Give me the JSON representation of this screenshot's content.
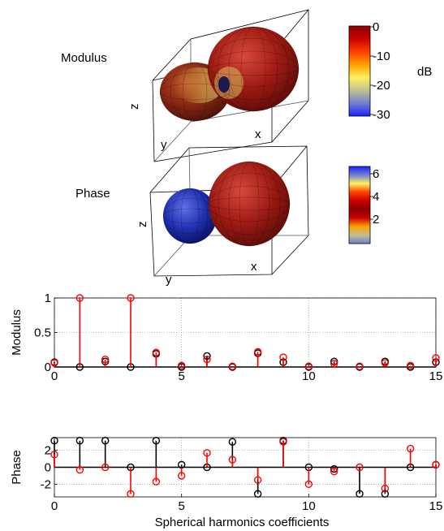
{
  "panels": {
    "modulus_3d": {
      "label": "Modulus",
      "axis_labels": {
        "z": "z",
        "y": "y",
        "x": "x"
      },
      "colorbar": {
        "ticks": [
          "0",
          "-10",
          "-20",
          "-30"
        ],
        "unit": "dB",
        "colors": [
          "#8b0000",
          "#cc0000",
          "#ff4000",
          "#ffa000",
          "#fff060",
          "#c0c090",
          "#7080d0",
          "#2020ff"
        ]
      }
    },
    "phase_3d": {
      "label": "Phase",
      "axis_labels": {
        "z": "z",
        "y": "y",
        "x": "x"
      },
      "colorbar": {
        "ticks": [
          "6",
          "4",
          "2"
        ],
        "colors": [
          "#2020ff",
          "#7080d0",
          "#fff060",
          "#ff4000",
          "#cc0000",
          "#8b0000",
          "#cc0000",
          "#ffa000",
          "#c0c090",
          "#7080d0"
        ]
      }
    }
  },
  "colors": {
    "series_black": "#000000",
    "series_red": "#ff0000",
    "grid": "#808080"
  },
  "chart_data": [
    {
      "type": "stem",
      "ylabel": "Modulus",
      "xlabel": "",
      "xlim": [
        0,
        15
      ],
      "ylim": [
        0,
        1
      ],
      "xticks": [
        "0",
        "5",
        "10",
        "15"
      ],
      "yticks": [
        "0",
        "0.5",
        "1"
      ],
      "grid": true,
      "x": [
        0,
        1,
        2,
        3,
        4,
        5,
        6,
        7,
        8,
        9,
        10,
        11,
        12,
        13,
        14,
        15
      ],
      "series": [
        {
          "color": "black",
          "values": [
            0.07,
            0,
            0.08,
            0,
            0.19,
            0,
            0.16,
            0,
            0.2,
            0.07,
            0,
            0.08,
            0,
            0.08,
            0,
            0.07
          ]
        },
        {
          "color": "red",
          "values": [
            0.06,
            1.0,
            0.11,
            1.0,
            0.21,
            0.02,
            0.11,
            0.01,
            0.22,
            0.14,
            0.01,
            0.05,
            0.01,
            0.06,
            0.02,
            0.13
          ]
        }
      ]
    },
    {
      "type": "stem",
      "ylabel": "Phase",
      "xlabel": "Spherical harmonics coefficients",
      "xlim": [
        0,
        15
      ],
      "ylim": [
        -3.5,
        3.5
      ],
      "xticks": [
        "0",
        "5",
        "10",
        "15"
      ],
      "yticks": [
        "2",
        "0",
        "-2"
      ],
      "grid": true,
      "x": [
        0,
        1,
        2,
        3,
        4,
        5,
        6,
        7,
        8,
        9,
        10,
        11,
        12,
        13,
        14,
        15
      ],
      "series": [
        {
          "color": "black",
          "values": [
            3.14,
            3.14,
            3.14,
            0,
            3.14,
            0.3,
            0,
            3.0,
            -3.14,
            3.14,
            0,
            -0.2,
            -3.14,
            -3.14,
            0,
            0.3
          ]
        },
        {
          "color": "red",
          "values": [
            1.5,
            -0.3,
            0,
            -3.14,
            -1.7,
            -1.0,
            1.7,
            0.9,
            -1.5,
            3.0,
            -2.0,
            -0.5,
            0,
            -2.5,
            2.2,
            0.3
          ]
        }
      ]
    }
  ]
}
